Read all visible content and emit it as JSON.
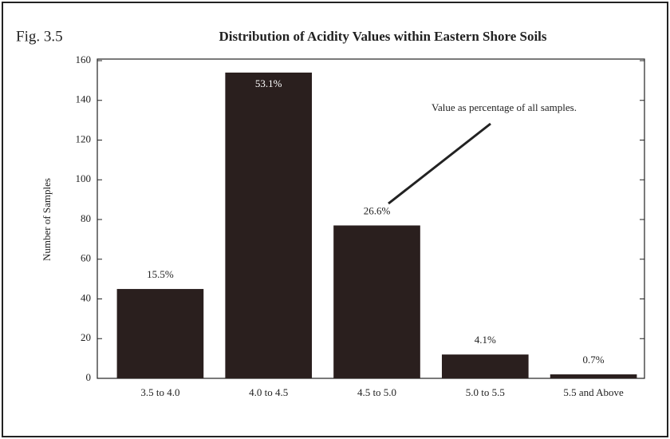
{
  "chart_data": {
    "type": "bar",
    "figure_label": "Fig. 3.5",
    "title": "Distribution of Acidity Values within Eastern Shore Soils",
    "y_label": "Number of Samples",
    "annotation": "Value as percentage of all samples.",
    "categories": [
      "3.5 to 4.0",
      "4.0 to 4.5",
      "4.5 to 5.0",
      "5.0 to 5.5",
      "5.5 and Above"
    ],
    "values": [
      45,
      154,
      77,
      12,
      2
    ],
    "value_labels": [
      "15.5%",
      "53.1%",
      "26.6%",
      "4.1%",
      "0.7%"
    ],
    "color": "#2a1f1e",
    "ylim": [
      0,
      160
    ],
    "yticks": [
      0,
      20,
      40,
      60,
      80,
      100,
      120,
      140,
      160
    ],
    "grid": false
  }
}
